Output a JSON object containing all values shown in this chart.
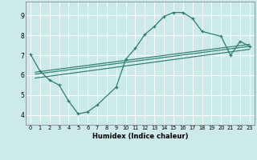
{
  "xlabel": "Humidex (Indice chaleur)",
  "background_color": "#cdeaea",
  "grid_color": "#b0d0d0",
  "line_color": "#2e7d6e",
  "xlim": [
    -0.5,
    23.5
  ],
  "ylim": [
    3.5,
    9.7
  ],
  "xticks": [
    0,
    1,
    2,
    3,
    4,
    5,
    6,
    7,
    8,
    9,
    10,
    11,
    12,
    13,
    14,
    15,
    16,
    17,
    18,
    19,
    20,
    21,
    22,
    23
  ],
  "yticks": [
    4,
    5,
    6,
    7,
    8,
    9
  ],
  "curve1_x": [
    0,
    1,
    2,
    3,
    4,
    5,
    6,
    7,
    9,
    10,
    11,
    12,
    13,
    14,
    15,
    16,
    17,
    18,
    20,
    21,
    22,
    23
  ],
  "curve1_y": [
    7.05,
    6.2,
    5.75,
    5.5,
    4.7,
    4.05,
    4.15,
    4.5,
    5.4,
    6.8,
    7.35,
    8.05,
    8.45,
    8.95,
    9.15,
    9.15,
    8.85,
    8.2,
    7.95,
    7.0,
    7.7,
    7.45
  ],
  "line2_x": [
    0.5,
    23
  ],
  "line2_y": [
    6.15,
    7.55
  ],
  "line3_x": [
    0.5,
    23
  ],
  "line3_y": [
    6.05,
    7.45
  ],
  "line4_x": [
    0.5,
    23
  ],
  "line4_y": [
    5.85,
    7.3
  ]
}
